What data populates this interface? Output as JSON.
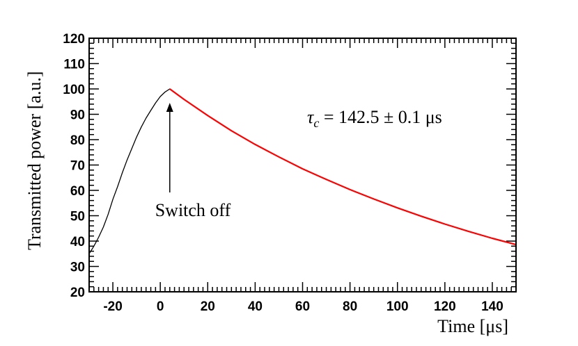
{
  "chart_data": {
    "type": "line",
    "xlabel": "Time [μs]",
    "ylabel": "Transmitted power [a.u.]",
    "xlim": [
      -30,
      150
    ],
    "ylim": [
      20,
      120
    ],
    "x_ticks": [
      -20,
      0,
      20,
      40,
      60,
      80,
      100,
      120,
      140
    ],
    "y_ticks": [
      20,
      30,
      40,
      50,
      60,
      70,
      80,
      90,
      100,
      110,
      120
    ],
    "grid": false,
    "series": [
      {
        "color": "#000000",
        "x": [
          -30,
          -28,
          -26,
          -24,
          -22,
          -20,
          -18,
          -16,
          -14,
          -12,
          -10,
          -8,
          -6,
          -4,
          -2,
          0,
          2,
          4,
          6,
          10,
          20,
          30,
          40,
          50,
          60,
          70,
          80,
          90,
          100,
          110,
          120,
          130,
          140,
          150
        ],
        "values": [
          35,
          38,
          41.5,
          45.5,
          50.5,
          56.5,
          61.5,
          67,
          72,
          76.5,
          81,
          85,
          88.5,
          91.5,
          94.5,
          97,
          98.8,
          100,
          98.7,
          95.9,
          89.5,
          83.5,
          78.1,
          73.2,
          68.5,
          64.3,
          60.3,
          56.6,
          53.1,
          49.8,
          46.7,
          43.8,
          41.1,
          38.6
        ]
      },
      {
        "color": "#ff0000",
        "x": [
          4,
          10,
          20,
          30,
          40,
          50,
          60,
          70,
          80,
          90,
          100,
          110,
          120,
          130,
          140,
          150
        ],
        "values": [
          100,
          95.9,
          89.5,
          83.5,
          78.1,
          73.2,
          68.5,
          64.3,
          60.3,
          56.6,
          53.1,
          49.8,
          46.7,
          43.8,
          41.1,
          38.6
        ]
      }
    ],
    "annotations": {
      "tau_symbol": "τ",
      "tau_subscript": "c",
      "tau_value": " = 142.5 ± 0.1 μs",
      "arrow_label": "Switch off",
      "arrow_x": 4
    }
  }
}
